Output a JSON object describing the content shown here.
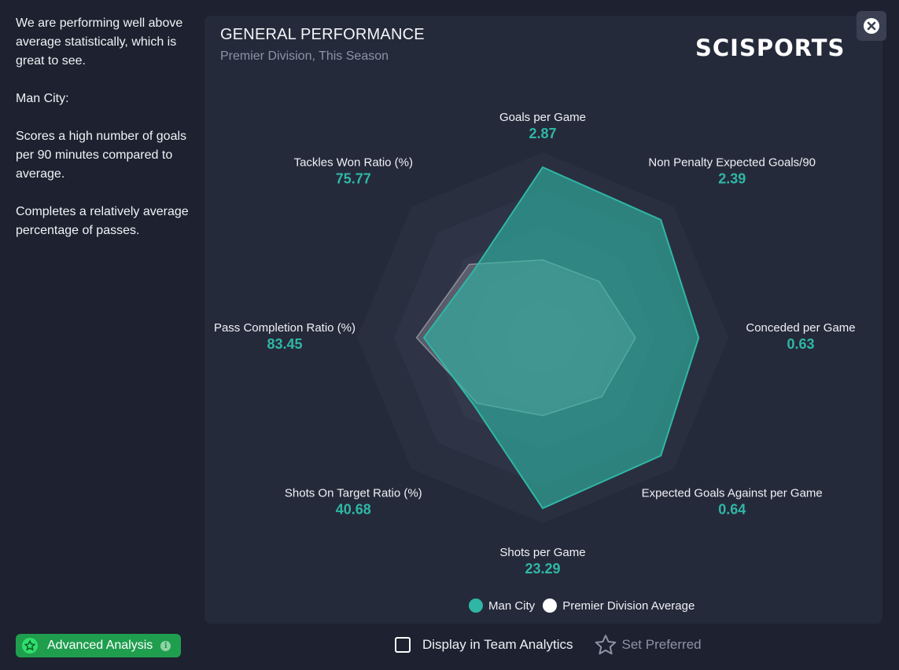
{
  "sidebar": {
    "paragraphs": [
      "We are performing well above average statistically, which is great to see.",
      "Man City:",
      "Scores a high number of goals per 90 minutes compared to average.",
      "Completes a relatively average percentage of passes."
    ],
    "advanced_button": "Advanced Analysis"
  },
  "panel": {
    "title": "GENERAL PERFORMANCE",
    "subtitle": "Premier Division, This Season",
    "logo": "SCISPORTS"
  },
  "footer": {
    "display_label": "Display in Team Analytics",
    "preferred_label": "Set Preferred"
  },
  "colors": {
    "team": "#2fb7a5",
    "average": "#ffffff",
    "accent_green": "#1f9e4e"
  },
  "chart_data": {
    "type": "radar",
    "title": "GENERAL PERFORMANCE",
    "subtitle": "Premier Division, This Season",
    "axes": [
      {
        "name": "Goals per Game",
        "value": "2.87",
        "team": 0.92,
        "avg": 0.42
      },
      {
        "name": "Non Penalty Expected Goals/90",
        "value": "2.39",
        "team": 0.9,
        "avg": 0.43
      },
      {
        "name": "Conceded per Game",
        "value": "0.63",
        "team": 0.84,
        "avg": 0.5
      },
      {
        "name": "Expected Goals Against per Game",
        "value": "0.64",
        "team": 0.9,
        "avg": 0.45
      },
      {
        "name": "Shots per Game",
        "value": "23.29",
        "team": 0.92,
        "avg": 0.42
      },
      {
        "name": "Shots On Target Ratio (%)",
        "value": "40.68",
        "team": 0.52,
        "avg": 0.5
      },
      {
        "name": "Pass Completion Ratio (%)",
        "value": "83.45",
        "team": 0.64,
        "avg": 0.68
      },
      {
        "name": "Tackles Won Ratio (%)",
        "value": "75.77",
        "team": 0.52,
        "avg": 0.56
      }
    ],
    "legend": [
      {
        "name": "Man City",
        "color": "#2fb7a5"
      },
      {
        "name": "Premier Division Average",
        "color": "#ffffff"
      }
    ],
    "legend_position": "bottom"
  }
}
